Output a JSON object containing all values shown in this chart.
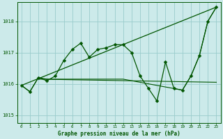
{
  "title": "Graphe pression niveau de la mer (hPa)",
  "background_color": "#cceaea",
  "grid_color": "#99cccc",
  "line_color": "#005500",
  "xlim": [
    -0.5,
    23.5
  ],
  "ylim": [
    1014.75,
    1018.6
  ],
  "yticks": [
    1015,
    1016,
    1017,
    1018
  ],
  "xticks": [
    0,
    1,
    2,
    3,
    4,
    5,
    6,
    7,
    8,
    9,
    10,
    11,
    12,
    13,
    14,
    15,
    16,
    17,
    18,
    19,
    20,
    21,
    22,
    23
  ],
  "series_main": {
    "x": [
      0,
      1,
      2,
      3,
      4,
      5,
      6,
      7,
      8,
      9,
      10,
      11,
      12,
      13,
      14,
      15,
      16,
      17,
      18,
      19,
      20,
      21,
      22,
      23
    ],
    "y": [
      1015.95,
      1015.75,
      1016.2,
      1016.1,
      1016.25,
      1016.75,
      1017.1,
      1017.3,
      1016.85,
      1017.1,
      1017.15,
      1017.25,
      1017.25,
      1017.0,
      1016.25,
      1015.85,
      1015.45,
      1016.7,
      1015.85,
      1015.8,
      1016.25,
      1016.9,
      1018.0,
      1018.45
    ]
  },
  "series_trend": {
    "x": [
      0,
      23
    ],
    "y": [
      1015.95,
      1018.45
    ]
  },
  "series_flat1": {
    "x": [
      0,
      1,
      2,
      3,
      4,
      5,
      6,
      7,
      8,
      9,
      10,
      11,
      12,
      13,
      14,
      15,
      16,
      17,
      18,
      19,
      20,
      21,
      22,
      23
    ],
    "y": [
      1015.95,
      1015.75,
      1016.2,
      1016.15,
      1016.15,
      1016.15,
      1016.15,
      1016.15,
      1016.15,
      1016.15,
      1016.15,
      1016.15,
      1016.15,
      1016.1,
      1016.05,
      1016.0,
      1015.95,
      1015.9,
      1015.85,
      1015.8,
      1016.25,
      1016.9,
      1018.0,
      1018.45
    ]
  },
  "series_flat2": {
    "x": [
      2,
      23
    ],
    "y": [
      1016.15,
      1016.05
    ]
  }
}
